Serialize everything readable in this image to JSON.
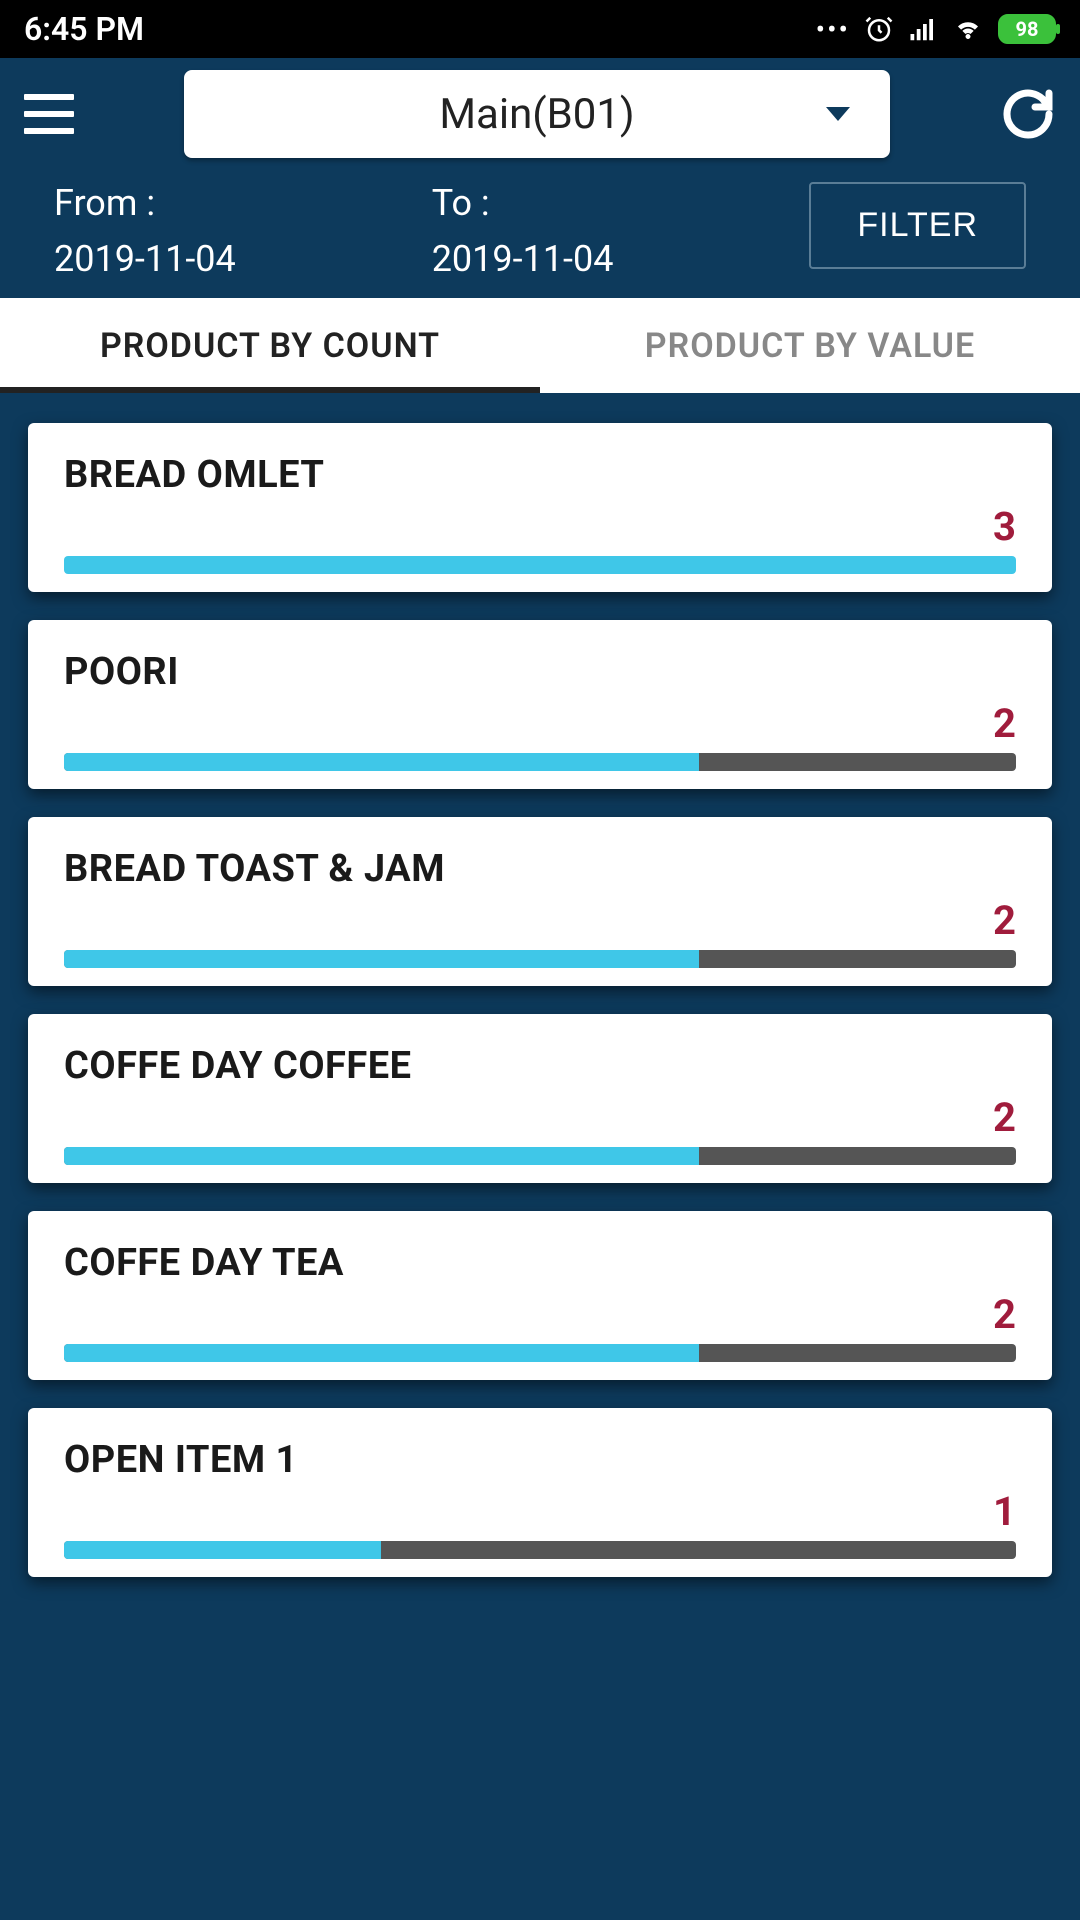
{
  "status_bar": {
    "time": "6:45 PM",
    "battery_text": "98"
  },
  "header": {
    "branch_selected": "Main(B01)",
    "from_label": "From :",
    "from_date": "2019-11-04",
    "to_label": "To :",
    "to_date": "2019-11-04",
    "filter_label": "FILTER"
  },
  "tabs": {
    "count_label": "PRODUCT BY COUNT",
    "value_label": "PRODUCT BY VALUE",
    "active_index": 0
  },
  "max_count": 3,
  "products": [
    {
      "name": "BREAD OMLET",
      "count": 3,
      "fill_pct": 100
    },
    {
      "name": "POORI",
      "count": 2,
      "fill_pct": 66.67
    },
    {
      "name": "BREAD TOAST & JAM",
      "count": 2,
      "fill_pct": 66.67
    },
    {
      "name": "COFFE DAY COFFEE",
      "count": 2,
      "fill_pct": 66.67
    },
    {
      "name": "COFFE DAY TEA",
      "count": 2,
      "fill_pct": 66.67
    },
    {
      "name": "OPEN ITEM 1",
      "count": 1,
      "fill_pct": 33.33
    }
  ],
  "colors": {
    "header_bg": "#0d3a5c",
    "bar_fill": "#3fc7e8",
    "bar_track": "#555555",
    "count_text": "#a01c3c",
    "card_bg": "#ffffff"
  }
}
